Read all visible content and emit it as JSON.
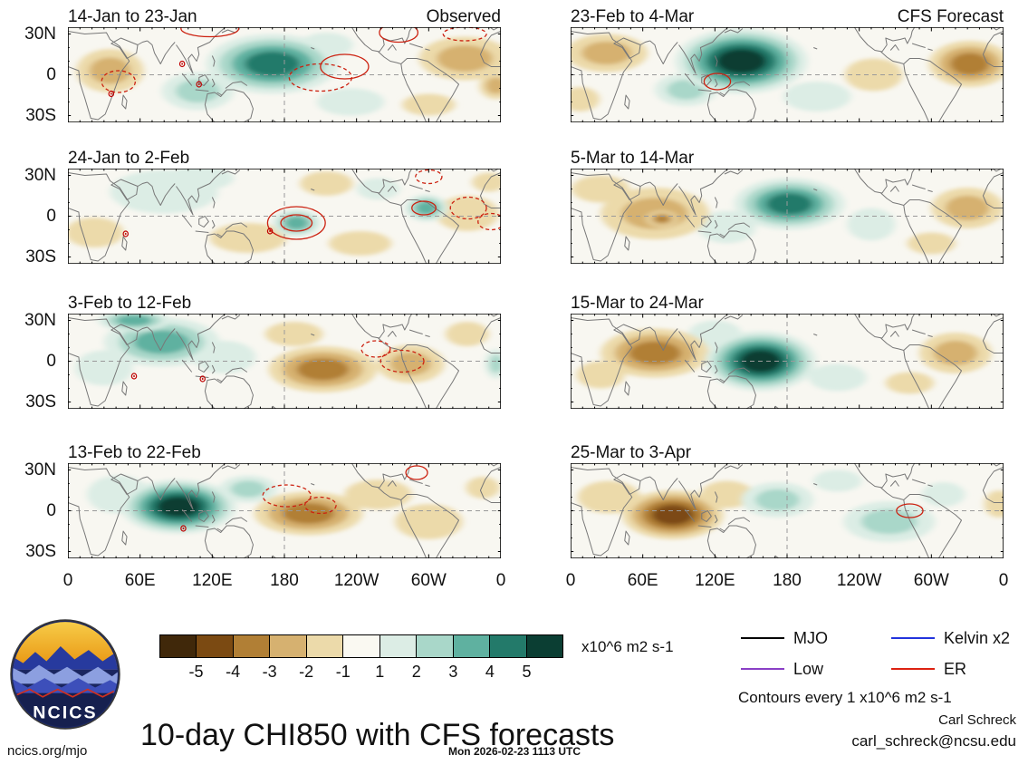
{
  "figure": {
    "title": "10-day CHI850 with CFS forecasts",
    "footer_left": "ncics.org/mjo",
    "timestamp": "Mon 2026-02-23 1113 UTC",
    "contour_note": "Contours every 1 x10^6 m2 s-1",
    "author": "Carl Schreck",
    "email": "carl_schreck@ncsu.edu",
    "logo_text": "NCICS"
  },
  "axes": {
    "y_ticks": [
      "30N",
      "0",
      "30S"
    ],
    "x_ticks": [
      "0",
      "60E",
      "120E",
      "180",
      "120W",
      "60W",
      "0"
    ]
  },
  "colorbar": {
    "ticks": [
      "-5",
      "-4",
      "-3",
      "-2",
      "-1",
      "1",
      "2",
      "3",
      "4",
      "5"
    ],
    "unit": "x10^6 m2 s-1",
    "segments": [
      "#40280a",
      "#7b4a12",
      "#b17f35",
      "#d6b170",
      "#ecdaaa",
      "#faf9f2",
      "#dcede5",
      "#a9d7c9",
      "#5fb1a0",
      "#237a6a",
      "#0b3e33"
    ]
  },
  "legend": [
    {
      "label": "MJO",
      "color": "#000000"
    },
    {
      "label": "Low",
      "color": "#8a3fc6"
    },
    {
      "label": "Kelvin x2",
      "color": "#2233dd"
    },
    {
      "label": "ER",
      "color": "#dd2211"
    }
  ],
  "chart_data": {
    "type": "heatmap",
    "subtype": "longitude-latitude anomaly maps, 8 panels (4 observed, 4 CFS forecast)",
    "variable": "CHI850 anomaly",
    "units": "x10^6 m2 s-1",
    "lon_range": [
      0,
      360
    ],
    "lat_range": [
      -35,
      35
    ],
    "grid": {
      "equator_dashed": true,
      "dateline_dashed": true
    },
    "level_colors": {
      "-5": "#40280a",
      "-4": "#7b4a12",
      "-3": "#b17f35",
      "-2": "#d6b170",
      "-1": "#ecdaaa",
      "1": "#dcede5",
      "2": "#a9d7c9",
      "3": "#5fb1a0",
      "4": "#237a6a",
      "5": "#0b3e33"
    },
    "contour_color": "#cc2211",
    "panels": [
      {
        "title": "14-Jan to 23-Jan",
        "corner_label": "Observed",
        "blobs": [
          [
            170,
            8,
            55,
            22,
            4
          ],
          [
            108,
            -12,
            30,
            14,
            2
          ],
          [
            215,
            22,
            22,
            9,
            1
          ],
          [
            235,
            -20,
            28,
            10,
            1
          ],
          [
            35,
            3,
            28,
            16,
            -2
          ],
          [
            330,
            12,
            38,
            16,
            -2
          ],
          [
            300,
            -22,
            22,
            8,
            -1
          ],
          [
            356,
            -8,
            14,
            10,
            -2
          ]
        ],
        "contours": [
          [
            42,
            -5,
            14,
            8,
            "dashed"
          ],
          [
            210,
            -2,
            26,
            10,
            "dashed"
          ],
          [
            230,
            6,
            20,
            9,
            "solid"
          ],
          [
            118,
            34,
            24,
            6,
            "solid"
          ],
          [
            275,
            31,
            16,
            7,
            "solid"
          ],
          [
            330,
            30,
            18,
            5,
            "dashed"
          ]
        ],
        "storms": [
          [
            95,
            8
          ],
          [
            109,
            -7
          ],
          [
            36,
            -14
          ]
        ]
      },
      {
        "title": "24-Jan to 2-Feb",
        "corner_label": "",
        "blobs": [
          [
            80,
            18,
            45,
            16,
            1
          ],
          [
            110,
            28,
            28,
            9,
            1
          ],
          [
            190,
            -5,
            20,
            10,
            3
          ],
          [
            298,
            6,
            18,
            10,
            3
          ],
          [
            258,
            20,
            18,
            8,
            1
          ],
          [
            150,
            -16,
            32,
            11,
            -1
          ],
          [
            215,
            24,
            22,
            9,
            -1
          ],
          [
            243,
            -20,
            26,
            9,
            -1
          ],
          [
            332,
            2,
            26,
            13,
            -1
          ],
          [
            22,
            -12,
            24,
            11,
            -1
          ],
          [
            350,
            25,
            14,
            7,
            -1
          ]
        ],
        "contours": [
          [
            190,
            -5,
            24,
            12,
            "solid"
          ],
          [
            190,
            -5,
            13,
            6,
            "solid"
          ],
          [
            333,
            6,
            15,
            8,
            "dashed"
          ],
          [
            352,
            -4,
            11,
            6,
            "dashed"
          ],
          [
            300,
            29,
            11,
            5,
            "dashed"
          ],
          [
            296,
            6,
            10,
            5,
            "solid"
          ]
        ],
        "storms": [
          [
            48,
            -13
          ],
          [
            168,
            -11
          ]
        ]
      },
      {
        "title": "3-Feb to 12-Feb",
        "corner_label": "",
        "blobs": [
          [
            78,
            14,
            48,
            18,
            3
          ],
          [
            55,
            30,
            30,
            8,
            3
          ],
          [
            30,
            -5,
            24,
            13,
            1
          ],
          [
            130,
            3,
            26,
            12,
            1
          ],
          [
            212,
            -6,
            45,
            17,
            -3
          ],
          [
            188,
            20,
            24,
            9,
            -1
          ],
          [
            285,
            -2,
            28,
            14,
            -2
          ],
          [
            332,
            20,
            18,
            9,
            -1
          ],
          [
            356,
            -2,
            9,
            11,
            2
          ]
        ],
        "contours": [
          [
            278,
            0,
            18,
            8,
            "dashed"
          ],
          [
            256,
            9,
            12,
            6,
            "dashed"
          ]
        ],
        "storms": [
          [
            55,
            -11
          ],
          [
            112,
            -13
          ]
        ]
      },
      {
        "title": "13-Feb to 22-Feb",
        "corner_label": "",
        "blobs": [
          [
            92,
            3,
            48,
            20,
            5
          ],
          [
            150,
            16,
            24,
            10,
            2
          ],
          [
            42,
            12,
            26,
            14,
            1
          ],
          [
            200,
            -2,
            45,
            16,
            -3
          ],
          [
            258,
            12,
            28,
            11,
            -1
          ],
          [
            300,
            -8,
            28,
            13,
            -1
          ],
          [
            345,
            17,
            14,
            8,
            -1
          ]
        ],
        "contours": [
          [
            182,
            11,
            20,
            8,
            "dashed"
          ],
          [
            210,
            4,
            13,
            6,
            "dashed"
          ],
          [
            290,
            28,
            9,
            5,
            "solid"
          ]
        ],
        "storms": [
          [
            96,
            -13
          ]
        ]
      },
      {
        "title": "23-Feb to 4-Mar",
        "corner_label": "CFS Forecast",
        "blobs": [
          [
            142,
            10,
            55,
            24,
            5
          ],
          [
            96,
            -11,
            26,
            12,
            2
          ],
          [
            205,
            -16,
            28,
            11,
            1
          ],
          [
            30,
            16,
            34,
            14,
            -2
          ],
          [
            332,
            8,
            34,
            17,
            -3
          ],
          [
            252,
            0,
            24,
            12,
            -1
          ],
          [
            8,
            -18,
            16,
            9,
            -1
          ]
        ],
        "contours": [
          [
            122,
            -5,
            11,
            6,
            "solid"
          ]
        ],
        "storms": []
      },
      {
        "title": "5-Mar to 14-Mar",
        "corner_label": "",
        "blobs": [
          [
            182,
            9,
            46,
            19,
            4
          ],
          [
            130,
            -8,
            24,
            12,
            1
          ],
          [
            250,
            -6,
            20,
            12,
            1
          ],
          [
            70,
            2,
            45,
            19,
            -2
          ],
          [
            76,
            -2,
            13,
            6,
            -3
          ],
          [
            25,
            20,
            24,
            10,
            -1
          ],
          [
            330,
            6,
            30,
            15,
            -2
          ],
          [
            300,
            -20,
            20,
            8,
            -1
          ]
        ],
        "contours": [],
        "storms": []
      },
      {
        "title": "15-Mar to 24-Mar",
        "corner_label": "",
        "blobs": [
          [
            158,
            0,
            46,
            22,
            5
          ],
          [
            120,
            20,
            22,
            10,
            1
          ],
          [
            222,
            -12,
            24,
            10,
            1
          ],
          [
            70,
            6,
            45,
            18,
            -3
          ],
          [
            25,
            -10,
            20,
            10,
            -1
          ],
          [
            320,
            6,
            30,
            15,
            -2
          ],
          [
            282,
            -16,
            20,
            8,
            -1
          ]
        ],
        "contours": [],
        "storms": []
      },
      {
        "title": "25-Mar to 3-Apr",
        "corner_label": "",
        "blobs": [
          [
            85,
            -3,
            42,
            18,
            -4
          ],
          [
            32,
            10,
            26,
            12,
            -1
          ],
          [
            130,
            12,
            22,
            10,
            -1
          ],
          [
            356,
            5,
            12,
            10,
            -1
          ],
          [
            172,
            8,
            30,
            13,
            2
          ],
          [
            265,
            -8,
            38,
            15,
            2
          ],
          [
            310,
            12,
            18,
            9,
            1
          ],
          [
            222,
            22,
            20,
            8,
            1
          ]
        ],
        "contours": [
          [
            282,
            0,
            11,
            5,
            "solid"
          ]
        ],
        "storms": []
      }
    ]
  }
}
